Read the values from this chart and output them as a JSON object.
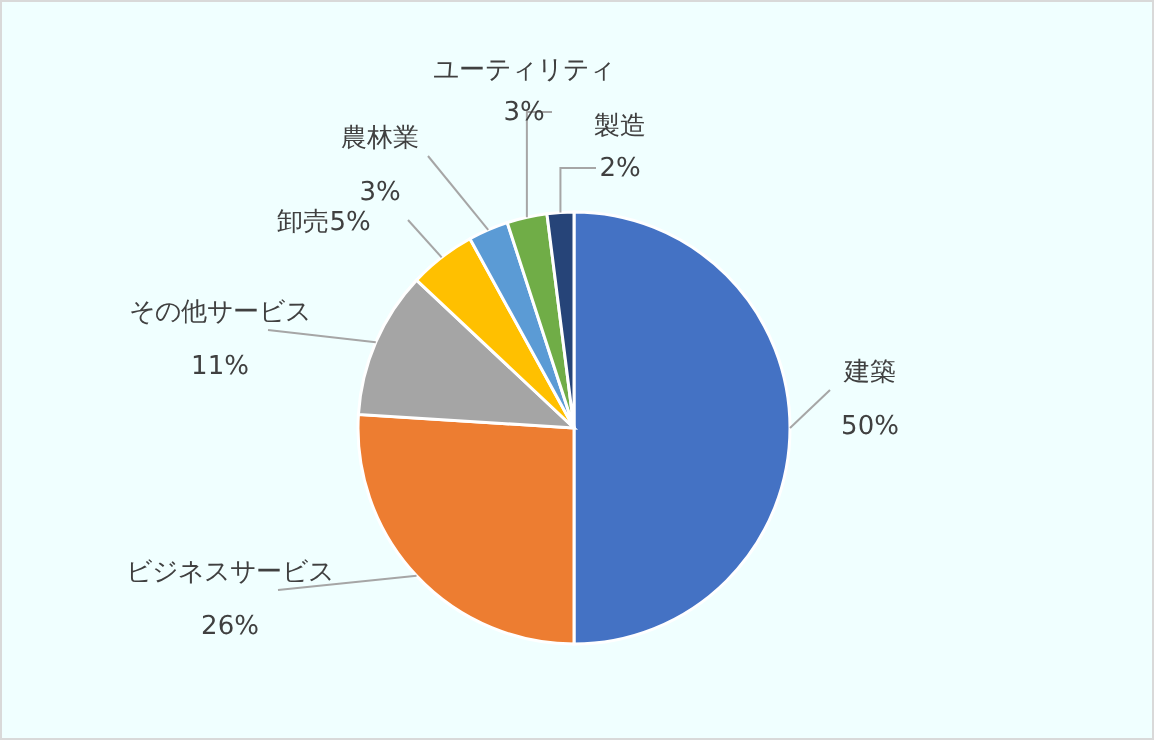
{
  "chart_data": {
    "type": "pie",
    "categories": [
      "建築",
      "ビジネスサービス",
      "その他サービス",
      "卸売",
      "農林業",
      "ユーティリティ",
      "製造"
    ],
    "values": [
      50,
      26,
      11,
      5,
      3,
      3,
      2
    ],
    "value_labels": [
      "50%",
      "26%",
      "11%",
      "5%",
      "3%",
      "3%",
      "2%"
    ],
    "colors": [
      "#4472c4",
      "#ed7d31",
      "#a5a5a5",
      "#ffc000",
      "#5b9bd5",
      "#70ad47",
      "#264478"
    ]
  }
}
